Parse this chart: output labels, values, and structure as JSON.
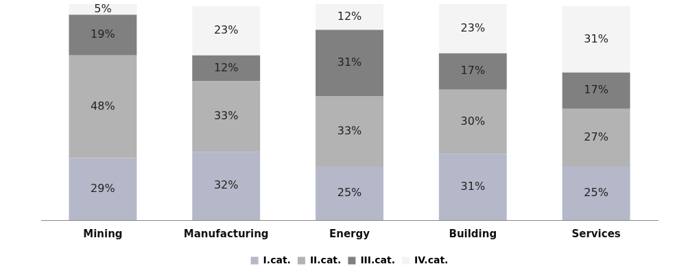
{
  "chart_data": {
    "type": "bar",
    "stacked": true,
    "legend": "bottom",
    "grid": false,
    "categories": [
      "Mining",
      "Manufacturing",
      "Energy",
      "Building",
      "Services"
    ],
    "series": [
      {
        "name": "I.cat.",
        "color": "#b4b8c8",
        "values": [
          29,
          32,
          25,
          31,
          25
        ],
        "value_labels": [
          "29%",
          "32%",
          "25%",
          "31%",
          "25%"
        ]
      },
      {
        "name": "II.cat.",
        "color": "#b3b3b3",
        "values": [
          48,
          33,
          33,
          30,
          27
        ],
        "value_labels": [
          "48%",
          "33%",
          "33%",
          "30%",
          "27%"
        ]
      },
      {
        "name": "III.cat.",
        "color": "#808080",
        "values": [
          19,
          12,
          31,
          17,
          17
        ],
        "value_labels": [
          "19%",
          "12%",
          "31%",
          "17%",
          "17%"
        ]
      },
      {
        "name": "IV.cat.",
        "color": "#f4f4f4",
        "values": [
          5,
          23,
          12,
          23,
          31
        ],
        "value_labels": [
          "5%",
          "23%",
          "12%",
          "23%",
          "31%"
        ]
      }
    ]
  }
}
